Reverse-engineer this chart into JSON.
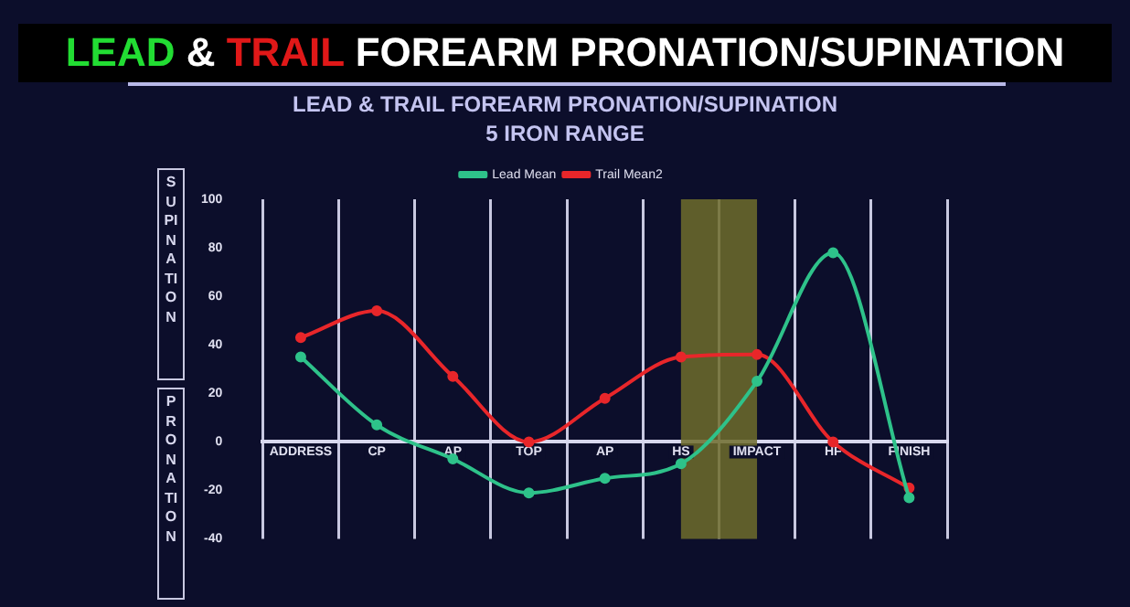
{
  "chart_data": {
    "type": "line",
    "title": "LEAD & TRAIL FOREARM PRONATION/SUPINATION",
    "subtitle": "LEAD & TRAIL FOREARM PRONATION/SUPINATION\n5 IRON RANGE",
    "categories": [
      "ADDRESS",
      "CP",
      "AP",
      "TOP",
      "AP",
      "HS",
      "IMPACT",
      "HF",
      "FINISH"
    ],
    "series": [
      {
        "name": "Lead Mean",
        "color": "#2ec28a",
        "values": [
          35,
          7,
          -7,
          -21,
          -15,
          -9,
          25,
          78,
          -23
        ]
      },
      {
        "name": "Trail Mean2",
        "color": "#e8262a",
        "values": [
          43,
          54,
          27,
          0,
          18,
          35,
          36,
          0,
          -19
        ]
      }
    ],
    "ylim": [
      -40,
      100
    ],
    "yticks": [
      -40,
      -20,
      0,
      20,
      40,
      60,
      80,
      100
    ],
    "bands": [
      {
        "axis": "x",
        "from": "HS",
        "to": "IMPACT",
        "color": "#6e6c2c"
      }
    ],
    "annotations": [
      "SUPINATION",
      "PRONATION"
    ],
    "grid": "x",
    "legend": "top",
    "marker": "circle",
    "line_style": "solid"
  }
}
